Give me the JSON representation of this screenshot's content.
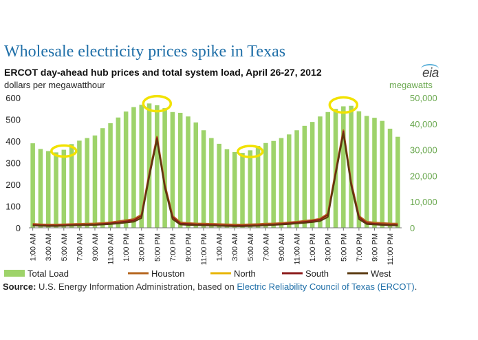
{
  "header": {
    "title": "Wholesale electricity prices spike in Texas",
    "subtitle": "ERCOT day-ahead  hub prices and total system  load, April 26-27, 2012",
    "left_axis_label": "dollars per megawatthour",
    "right_axis_label": "megawatts",
    "logo": "eia"
  },
  "source": {
    "label": "Source:",
    "text": " U.S. Energy Information Administration, based on ",
    "link": "Electric Reliability Council of Texas (ERCOT)",
    "end": "."
  },
  "colors": {
    "bars": "#9ed36a",
    "Houston": "#b5651d",
    "North": "#e8b400",
    "South": "#8b1a1a",
    "West": "#5a3a10",
    "highlight": "#f2e200"
  },
  "chart_data": {
    "type": "bar+line",
    "x_tick_labels": [
      "1:00 AM",
      "3:00 AM",
      "5:00 AM",
      "7:00 AM",
      "9:00 AM",
      "11:00 AM",
      "1:00 PM",
      "3:00 PM",
      "5:00 PM",
      "7:00 PM",
      "9:00 PM",
      "11:00 PM",
      "1:00 AM",
      "3:00 AM",
      "5:00 AM",
      "7:00 AM",
      "9:00 AM",
      "11:00 AM",
      "1:00 PM",
      "3:00 PM",
      "5:00 PM",
      "7:00 PM",
      "9:00 PM",
      "11:00 PM"
    ],
    "left_axis": {
      "ticks": [
        0,
        100,
        200,
        300,
        400,
        500,
        600
      ],
      "ylim": [
        0,
        600
      ]
    },
    "right_axis": {
      "ticks": [
        0,
        10000,
        20000,
        30000,
        40000,
        50000
      ],
      "tick_labels": [
        "0",
        "10,000",
        "20,000",
        "30,000",
        "40,000",
        "50,000"
      ],
      "ylim": [
        0,
        50000
      ]
    },
    "bar_series": {
      "name": "Total Load",
      "axis": "right",
      "values": [
        32500,
        30300,
        29500,
        29000,
        30000,
        32200,
        33500,
        34500,
        35500,
        38300,
        40200,
        42400,
        44700,
        46400,
        47300,
        47800,
        47100,
        46000,
        44500,
        44200,
        42800,
        40500,
        37500,
        34500,
        32300,
        30200,
        29100,
        28800,
        29800,
        31500,
        32600,
        33400,
        34500,
        35900,
        37500,
        39200,
        40700,
        42800,
        44500,
        45700,
        46700,
        46900,
        44800,
        43000,
        42300,
        41100,
        38100,
        35000
      ]
    },
    "line_series": [
      {
        "name": "Houston",
        "axis": "left",
        "values": [
          18,
          16,
          15,
          15,
          16,
          17,
          18,
          19,
          20,
          22,
          25,
          30,
          35,
          40,
          60,
          250,
          420,
          200,
          55,
          25,
          22,
          20,
          19,
          18,
          17,
          16,
          15,
          15,
          16,
          17,
          19,
          20,
          22,
          25,
          28,
          32,
          36,
          42,
          65,
          260,
          450,
          210,
          55,
          28,
          24,
          22,
          20,
          19
        ]
      },
      {
        "name": "North",
        "axis": "left",
        "values": [
          12,
          11,
          10,
          10,
          11,
          12,
          13,
          14,
          15,
          17,
          19,
          22,
          26,
          30,
          50,
          240,
          410,
          190,
          45,
          18,
          16,
          14,
          13,
          12,
          11,
          10,
          9,
          9,
          10,
          11,
          13,
          15,
          17,
          19,
          22,
          25,
          28,
          34,
          55,
          250,
          440,
          200,
          45,
          20,
          17,
          15,
          13,
          12
        ]
      },
      {
        "name": "South",
        "axis": "left",
        "values": [
          13,
          12,
          11,
          11,
          12,
          13,
          14,
          15,
          16,
          18,
          21,
          25,
          30,
          35,
          55,
          245,
          415,
          195,
          50,
          20,
          18,
          16,
          15,
          14,
          12,
          11,
          10,
          10,
          11,
          12,
          14,
          16,
          18,
          21,
          24,
          28,
          32,
          38,
          60,
          255,
          445,
          205,
          50,
          22,
          19,
          17,
          15,
          14
        ]
      },
      {
        "name": "West",
        "axis": "left",
        "values": [
          10,
          9,
          8,
          8,
          9,
          10,
          11,
          12,
          13,
          15,
          17,
          20,
          24,
          28,
          45,
          235,
          405,
          185,
          40,
          15,
          13,
          12,
          11,
          10,
          9,
          8,
          7,
          7,
          8,
          9,
          11,
          13,
          15,
          17,
          20,
          23,
          26,
          31,
          50,
          245,
          435,
          195,
          40,
          17,
          15,
          13,
          11,
          10
        ]
      }
    ],
    "legend": [
      "Total Load",
      "Houston",
      "North",
      "South",
      "West"
    ],
    "legend_position": "bottom",
    "annotations": "yellow ellipses highlighting load lows and peaks at 5:00 AM and 5:00 PM each day",
    "grid": false
  }
}
